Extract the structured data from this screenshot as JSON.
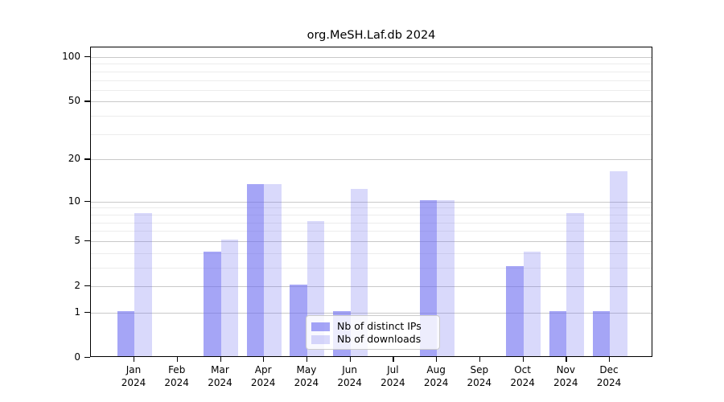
{
  "chart_data": {
    "type": "bar",
    "title": "org.MeSH.Laf.db 2024",
    "categories": [
      "Jan",
      "Feb",
      "Mar",
      "Apr",
      "May",
      "Jun",
      "Jul",
      "Aug",
      "Sep",
      "Oct",
      "Nov",
      "Dec"
    ],
    "year_label": "2024",
    "series": [
      {
        "name": "Nb of distinct IPs",
        "color": "#6969f0",
        "alpha": 0.6,
        "solid_hex": "#a9a9f7",
        "values": [
          1,
          0,
          4,
          13,
          2,
          1,
          0,
          10,
          0,
          3,
          1,
          1
        ]
      },
      {
        "name": "Nb of downloads",
        "color": "#6969f0",
        "alpha": 0.25,
        "solid_hex": "#dcdcfb",
        "values": [
          8,
          0,
          5,
          13,
          7,
          12,
          0,
          10,
          0,
          4,
          8,
          16
        ]
      }
    ],
    "yscale": "log1p",
    "ylim": [
      0,
      116
    ],
    "yticks": [
      0,
      1,
      2,
      5,
      10,
      20,
      50,
      100
    ],
    "minor_yticks": [
      3,
      4,
      6,
      7,
      8,
      9,
      30,
      40,
      60,
      70,
      80,
      90
    ],
    "grid": "on",
    "legend_position": "inside-bottom-center",
    "colors": {
      "background": "#ffffff",
      "frame": "#000000",
      "grid_major": "#c9c9c9",
      "grid_minor": "#ececec",
      "text": "#000000",
      "legend_border": "#cccccc"
    }
  }
}
